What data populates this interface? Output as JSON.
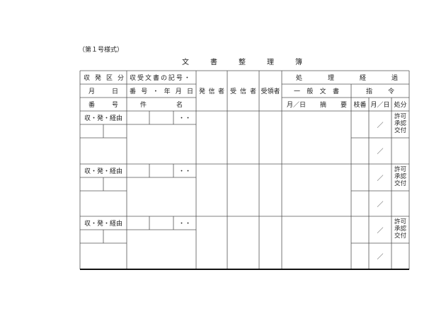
{
  "form_number": "（第１号様式）",
  "title": [
    "文",
    "書",
    "整",
    "理",
    "簿"
  ],
  "header": {
    "col1": [
      [
        "収",
        "発",
        "区",
        "分"
      ],
      [
        "月",
        "日"
      ],
      [
        "番",
        "号"
      ]
    ],
    "col2": [
      [
        "収",
        "受",
        "文",
        "書",
        "の",
        "記",
        "号",
        "・"
      ],
      [
        "番",
        "号",
        "・",
        "年",
        "月",
        "日"
      ],
      [
        "件",
        "名"
      ]
    ],
    "sender": [
      "発",
      "信",
      "者"
    ],
    "receiver": [
      "受",
      "信",
      "者"
    ],
    "recipient": "受領者",
    "process": [
      "処",
      "理",
      "経",
      "過"
    ],
    "general": [
      "一",
      "般",
      "文",
      "書"
    ],
    "order": [
      "指",
      "令"
    ],
    "general_sub": [
      "月／日",
      "摘",
      "要"
    ],
    "branch": "枝番",
    "order_date": "月／日",
    "disposal": "処分"
  },
  "rows": [
    {
      "type": "収・発・経由",
      "dots": "・・",
      "slash1": "／",
      "slash2": "／",
      "disposal": [
        "許可",
        "承認",
        "交付"
      ]
    },
    {
      "type": "収・発・経由",
      "dots": "・・",
      "slash1": "／",
      "slash2": "／",
      "disposal": [
        "許可",
        "承認",
        "交付"
      ]
    },
    {
      "type": "収・発・経由",
      "dots": "・・",
      "slash1": "／",
      "slash2": "／",
      "disposal": [
        "許可",
        "承認",
        "交付"
      ]
    }
  ]
}
